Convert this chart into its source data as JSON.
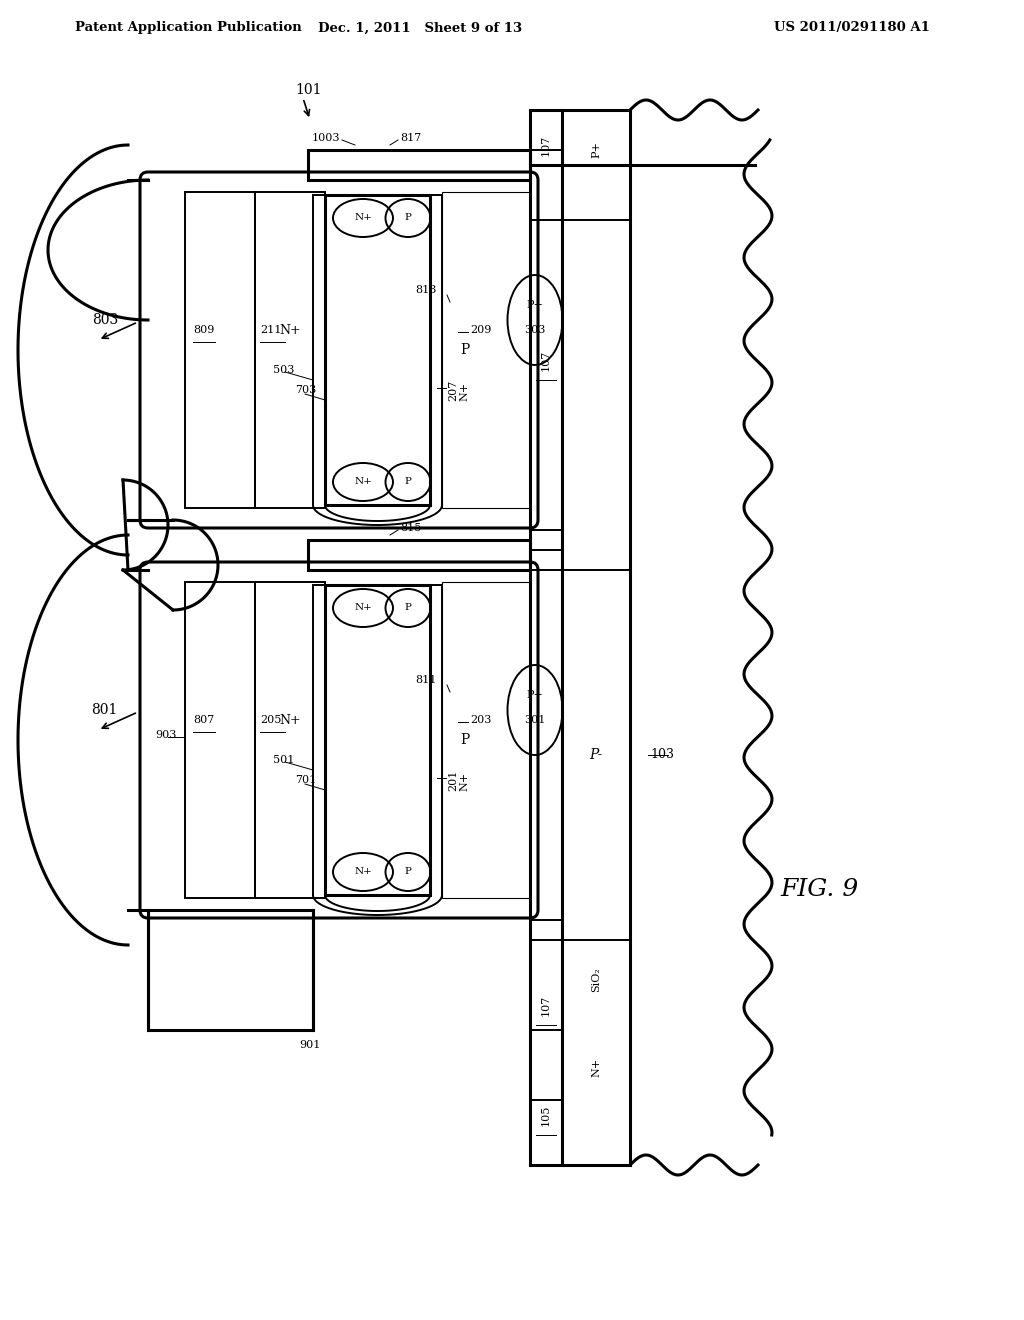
{
  "bg_color": "#ffffff",
  "line_color": "#000000",
  "header_left": "Patent Application Publication",
  "header_mid": "Dec. 1, 2011   Sheet 9 of 13",
  "header_right": "US 2011/0291180 A1",
  "fig_label": "FIG. 9"
}
